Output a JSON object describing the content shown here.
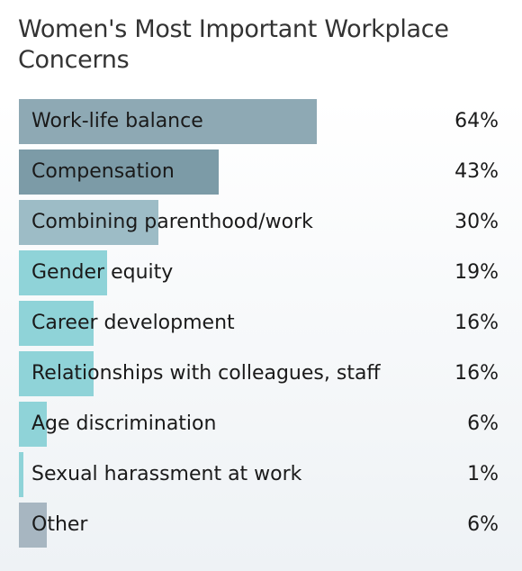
{
  "chart_data": {
    "type": "bar",
    "orientation": "horizontal",
    "title": "Women's Most Important Workplace Concerns",
    "categories": [
      "Work-life balance",
      "Compensation",
      "Combining parenthood/work",
      "Gender equity",
      "Career development",
      "Relationships with colleagues, staff",
      "Age discrimination",
      "Sexual harassment at work",
      "Other"
    ],
    "values": [
      64,
      43,
      30,
      19,
      16,
      16,
      6,
      1,
      6
    ],
    "value_labels": [
      "64%",
      "43%",
      "30%",
      "19%",
      "16%",
      "16%",
      "6%",
      "1%",
      "6%"
    ],
    "unit": "%",
    "xlim": [
      0,
      64
    ],
    "grid": false,
    "legend": "none",
    "bar_colors": [
      "#8ea9b4",
      "#7c9ba7",
      "#9dbcc6",
      "#8fd3d8",
      "#8fd3d8",
      "#8fd3d8",
      "#8fd3d8",
      "#8fd3d8",
      "#a7b6c1"
    ]
  }
}
